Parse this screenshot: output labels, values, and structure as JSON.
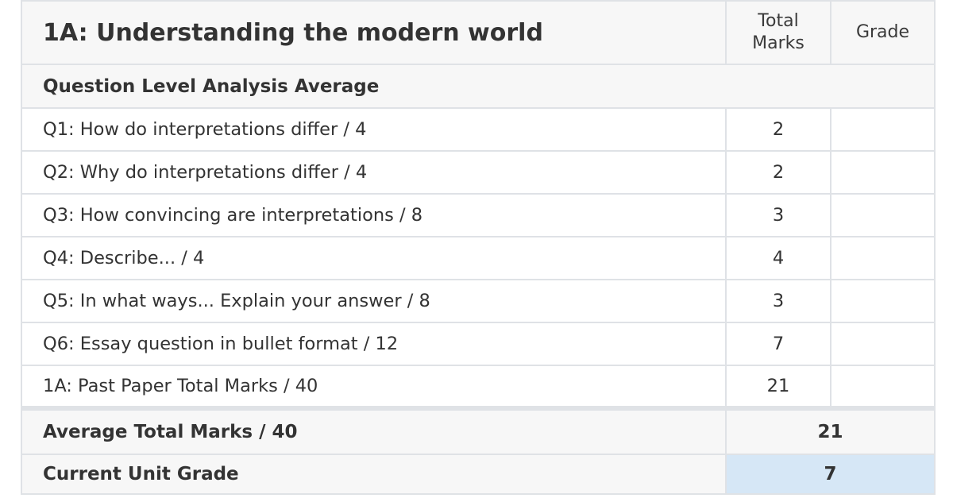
{
  "header": {
    "title": "1A: Understanding the modern world",
    "total_marks_label": "Total\nMarks",
    "grade_label": "Grade"
  },
  "section": {
    "label": "Question Level Analysis Average"
  },
  "questions": [
    {
      "label": "Q1: How do interpretations differ / 4",
      "total": "2",
      "grade": ""
    },
    {
      "label": "Q2: Why do interpretations differ / 4",
      "total": "2",
      "grade": ""
    },
    {
      "label": "Q3: How convincing are interpretations / 8",
      "total": "3",
      "grade": ""
    },
    {
      "label": "Q4: Describe... / 4",
      "total": "4",
      "grade": ""
    },
    {
      "label": "Q5: In what ways... Explain your answer / 8",
      "total": "3",
      "grade": ""
    },
    {
      "label": "Q6: Essay question in bullet format / 12",
      "total": "7",
      "grade": ""
    },
    {
      "label": "1A: Past Paper Total Marks / 40",
      "total": "21",
      "grade": ""
    }
  ],
  "summary": {
    "average_label": "Average Total Marks / 40",
    "average_value": "21",
    "grade_label": "Current Unit Grade",
    "grade_value": "7"
  },
  "colors": {
    "border": "#dfe2e6",
    "header_bg": "#f7f7f7",
    "grade_highlight": "#d6e7f6"
  }
}
